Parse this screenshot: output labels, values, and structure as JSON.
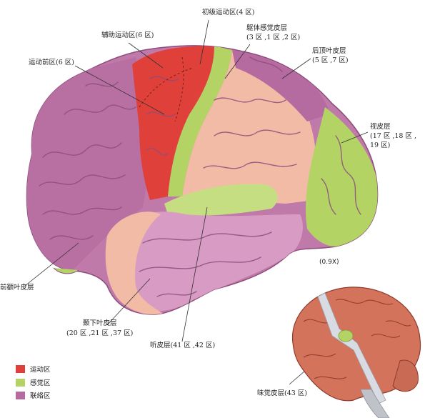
{
  "colors": {
    "motor": "#e0403a",
    "sensory": "#b3d465",
    "association": "#b56aa0",
    "association_light": "#d9a6c8",
    "gyri_pink": "#f4c6b0",
    "small_brain": "#d4735c"
  },
  "labels": {
    "primary_motor": "初级运动区(4 区)",
    "supplementary_motor": "辅助运动区(6 区)",
    "somatosensory_1": "躯体感觉皮层",
    "somatosensory_2": "(3 区 ,1 区 ,2 区)",
    "premotor": "运动前区(6 区)",
    "posterior_parietal_1": "后顶叶皮层",
    "posterior_parietal_2": "(5 区 ,7 区)",
    "visual_1": "视皮层",
    "visual_2": "(17 区 ,18 区 ,",
    "visual_3": "19 区)",
    "prefrontal": "前额叶皮层",
    "inferior_temporal_1": "颞下叶皮层",
    "inferior_temporal_2": "(20 区 ,21 区 ,37 区)",
    "auditory": "听皮层(41 区 ,42 区)",
    "gustatory": "味觉皮层(43 区)",
    "scale": "(0.9X)"
  },
  "legend": [
    {
      "label": "运动区",
      "color": "#e0403a"
    },
    {
      "label": "感觉区",
      "color": "#b3d465"
    },
    {
      "label": "联络区",
      "color": "#b56aa0"
    }
  ]
}
